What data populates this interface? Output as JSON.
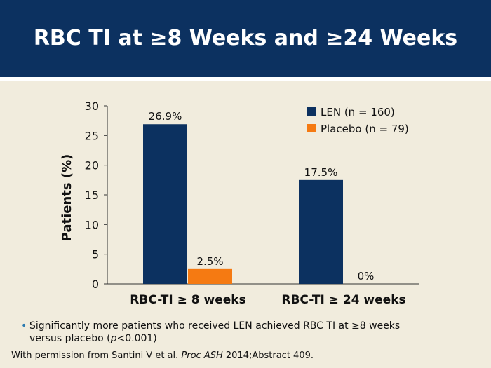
{
  "header": {
    "title": "RBC TI at ≥8 Weeks and ≥24 Weeks"
  },
  "chart_data": {
    "type": "bar",
    "ylabel": "Patients (%)",
    "ylim": [
      0,
      30
    ],
    "yticks": [
      0,
      5,
      10,
      15,
      20,
      25,
      30
    ],
    "categories": [
      "RBC-TI ≥ 8 weeks",
      "RBC-TI ≥ 24 weeks"
    ],
    "series": [
      {
        "name": "LEN (n = 160)",
        "color": "#0c3160",
        "values": [
          26.9,
          17.5
        ],
        "labels": [
          "26.9%",
          "17.5%"
        ]
      },
      {
        "name": "Placebo (n = 79)",
        "color": "#f57a12",
        "values": [
          2.5,
          0
        ],
        "labels": [
          "2.5%",
          "0%"
        ]
      }
    ],
    "legend": "top-right"
  },
  "bullet": {
    "line1": "Significantly more patients who received LEN achieved RBC TI at ≥8 weeks",
    "line2_prefix": "versus placebo (",
    "line2_italic": "p",
    "line2_suffix": "<0.001)"
  },
  "credit": {
    "prefix": "With permission from Santini V et al. ",
    "italic": "Proc ASH",
    "suffix": " 2014;Abstract 409."
  }
}
